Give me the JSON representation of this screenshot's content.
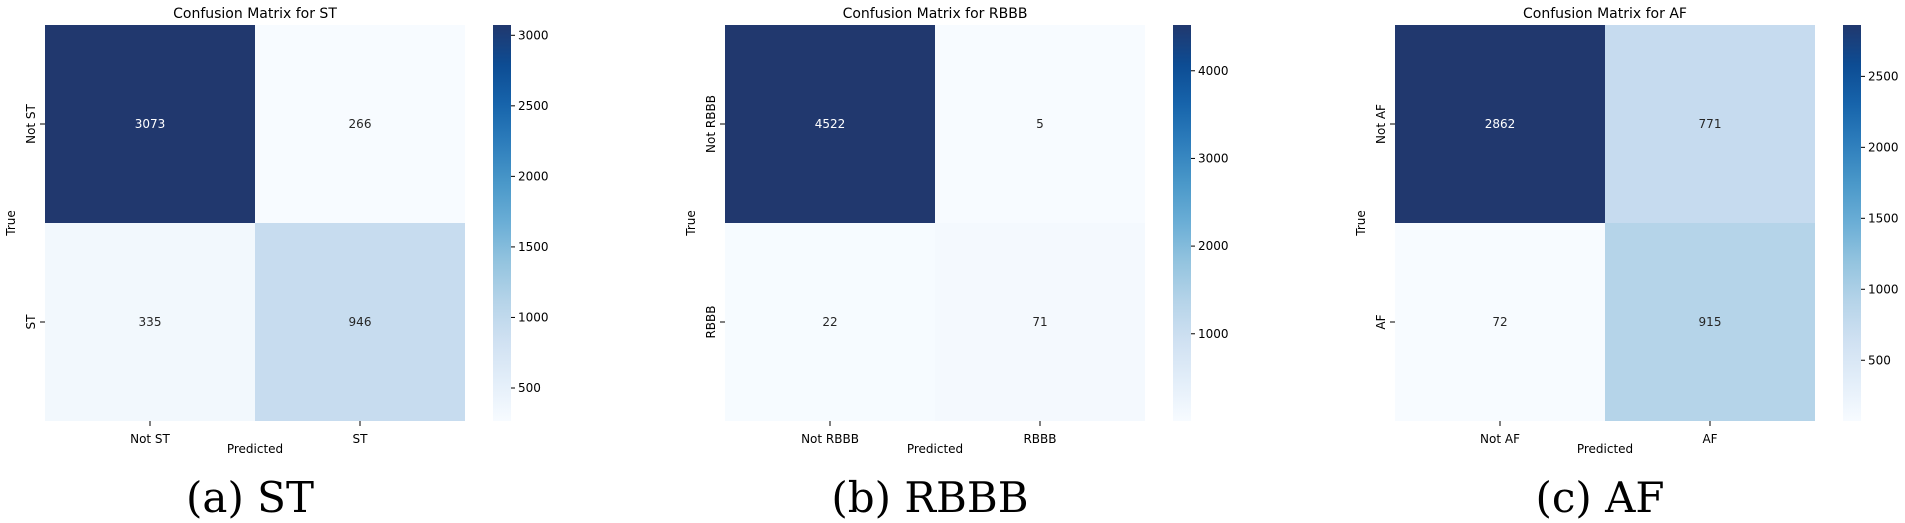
{
  "chart_data": [
    {
      "type": "heatmap",
      "title": "Confusion Matrix for ST",
      "xlabel": "Predicted",
      "ylabel": "True",
      "x_categories": [
        "Not ST",
        "ST"
      ],
      "y_categories": [
        "Not ST",
        "ST"
      ],
      "values": [
        [
          3073,
          266
        ],
        [
          335,
          946
        ]
      ],
      "colormap": "Blues",
      "color_range": [
        266,
        3073
      ],
      "colorbar_ticks": [
        500,
        1000,
        1500,
        2000,
        2500,
        3000
      ],
      "caption": "(a) ST"
    },
    {
      "type": "heatmap",
      "title": "Confusion Matrix for RBBB",
      "xlabel": "Predicted",
      "ylabel": "True",
      "x_categories": [
        "Not RBBB",
        "RBBB"
      ],
      "y_categories": [
        "Not RBBB",
        "RBBB"
      ],
      "values": [
        [
          4522,
          5
        ],
        [
          22,
          71
        ]
      ],
      "colormap": "Blues",
      "color_range": [
        5,
        4522
      ],
      "colorbar_ticks": [
        1000,
        2000,
        3000,
        4000
      ],
      "caption": "(b) RBBB"
    },
    {
      "type": "heatmap",
      "title": "Confusion Matrix for AF",
      "xlabel": "Predicted",
      "ylabel": "True",
      "x_categories": [
        "Not AF",
        "AF"
      ],
      "y_categories": [
        "Not AF",
        "AF"
      ],
      "values": [
        [
          2862,
          771
        ],
        [
          72,
          915
        ]
      ],
      "colormap": "Blues",
      "color_range": [
        72,
        2862
      ],
      "colorbar_ticks": [
        500,
        1000,
        1500,
        2000,
        2500
      ],
      "caption": "(c) AF"
    }
  ]
}
